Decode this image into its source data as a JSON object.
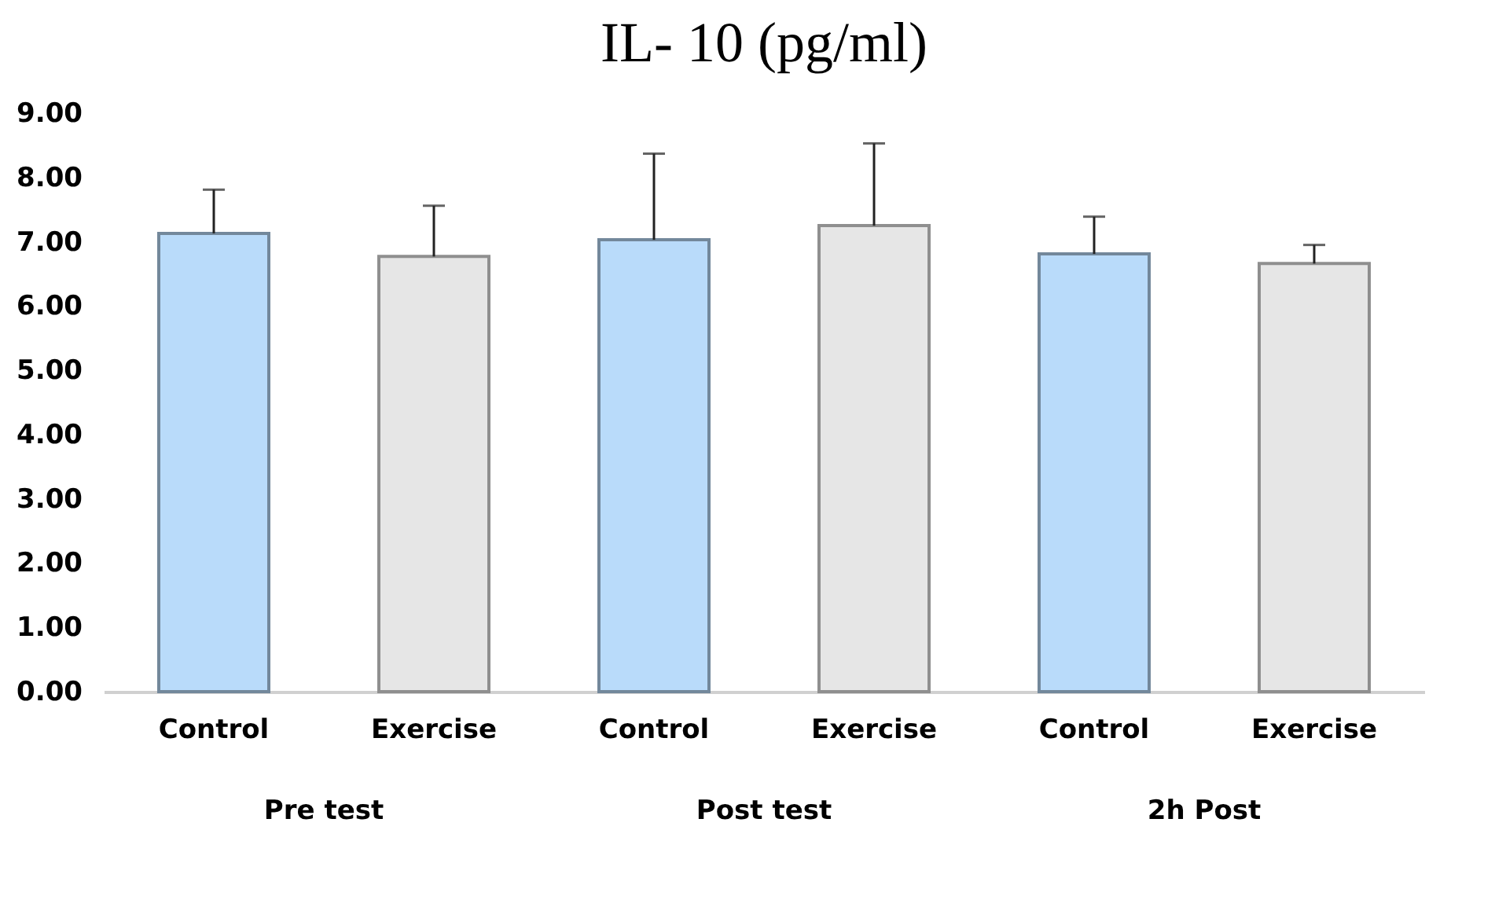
{
  "chart_data": {
    "type": "bar",
    "title": "IL- 10 (pg/ml)",
    "categories": [
      "Control",
      "Exercise",
      "Control",
      "Exercise",
      "Control",
      "Exercise"
    ],
    "values": [
      7.13,
      6.77,
      7.03,
      7.25,
      6.81,
      6.66
    ],
    "colors": [
      "#b9dbfa",
      "#e6e6e6",
      "#b9dbfa",
      "#e6e6e6",
      "#b9dbfa",
      "#e6e6e6"
    ],
    "errors": [
      [
        7.13,
        7.81
      ],
      [
        6.77,
        7.56
      ],
      [
        7.03,
        8.37
      ],
      [
        7.25,
        8.53
      ],
      [
        6.81,
        7.39
      ],
      [
        6.66,
        6.95
      ]
    ],
    "ylim": [
      0,
      9
    ],
    "yticks": [
      {
        "value": 0,
        "label": "0.00"
      },
      {
        "value": 1,
        "label": "1.00"
      },
      {
        "value": 2,
        "label": "2.00"
      },
      {
        "value": 3,
        "label": "3.00"
      },
      {
        "value": 4,
        "label": "4.00"
      },
      {
        "value": 5,
        "label": "5.00"
      },
      {
        "value": 6,
        "label": "6.00"
      },
      {
        "value": 7,
        "label": "7.00"
      },
      {
        "value": 8,
        "label": "8.00"
      },
      {
        "value": 9,
        "label": "9.00"
      }
    ],
    "annotations": [
      "Pre test",
      "Post test",
      "2h Post"
    ],
    "grid": false
  }
}
